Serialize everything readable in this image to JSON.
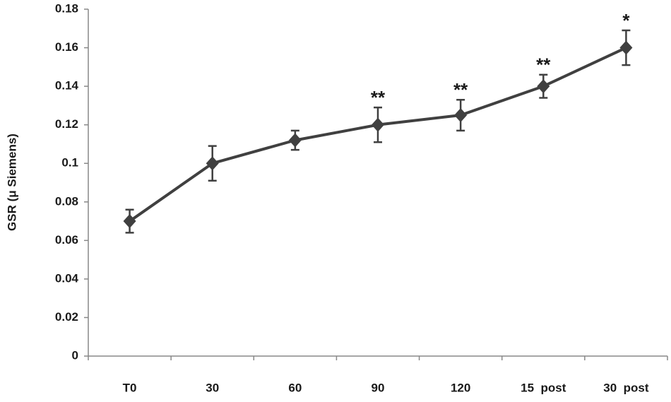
{
  "chart_data": {
    "type": "line",
    "y_label": "GSR (μ Siemens)",
    "categories": [
      "T0",
      "30",
      "60",
      "90",
      "120",
      "15  post",
      "30  post"
    ],
    "series": [
      {
        "name": "GSR",
        "color": "#404040",
        "values": [
          0.07,
          0.1,
          0.112,
          0.12,
          0.125,
          0.14,
          0.16
        ],
        "errors": [
          0.006,
          0.009,
          0.005,
          0.009,
          0.008,
          0.006,
          0.009
        ],
        "significance": [
          null,
          null,
          null,
          "**",
          "**",
          "**",
          "*"
        ]
      }
    ],
    "ylim": [
      0,
      0.18
    ],
    "yticks": [
      0,
      0.02,
      0.04,
      0.06,
      0.08,
      0.1,
      0.12,
      0.14,
      0.16,
      0.18
    ],
    "grid": false
  }
}
